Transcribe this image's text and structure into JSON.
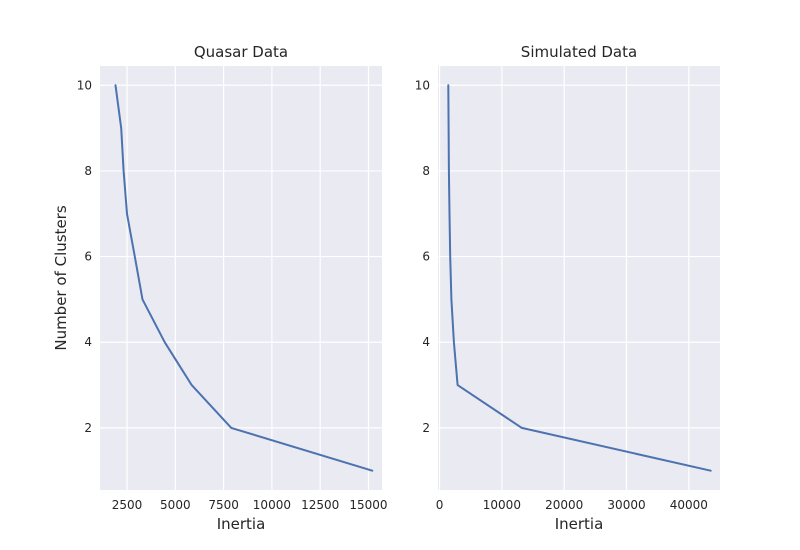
{
  "chart_data": [
    {
      "type": "line",
      "title": "Quasar Data",
      "xlabel": "Inertia",
      "ylabel": "Number of Clusters",
      "xlim": [
        1100,
        15700
      ],
      "ylim": [
        0.55,
        10.45
      ],
      "xticks": [
        2500,
        5000,
        7500,
        10000,
        12500,
        15000
      ],
      "xtick_labels": [
        "2500",
        "5000",
        "7500",
        "10000",
        "12500",
        "15000"
      ],
      "yticks": [
        2,
        4,
        6,
        8,
        10
      ],
      "ytick_labels": [
        "2",
        "4",
        "6",
        "8",
        "10"
      ],
      "grid": true,
      "series": [
        {
          "x": [
            15200,
            7900,
            5850,
            4450,
            3300,
            2900,
            2500,
            2320,
            2200,
            1900
          ],
          "y": [
            1,
            2,
            3,
            4,
            5,
            6,
            7,
            8,
            9,
            10
          ]
        }
      ]
    },
    {
      "type": "line",
      "title": "Simulated Data",
      "xlabel": "Inertia",
      "ylabel": "",
      "xlim": [
        -250,
        45000
      ],
      "ylim": [
        0.55,
        10.45
      ],
      "xticks": [
        0,
        10000,
        20000,
        30000,
        40000
      ],
      "xtick_labels": [
        "0",
        "10000",
        "20000",
        "30000",
        "40000"
      ],
      "yticks": [
        2,
        4,
        6,
        8,
        10
      ],
      "ytick_labels": [
        "2",
        "4",
        "6",
        "8",
        "10"
      ],
      "grid": true,
      "series": [
        {
          "x": [
            43500,
            13200,
            2900,
            2300,
            1900,
            1700,
            1600,
            1500,
            1450,
            1400
          ],
          "y": [
            1,
            2,
            3,
            4,
            5,
            6,
            7,
            8,
            9,
            10
          ]
        }
      ]
    }
  ]
}
